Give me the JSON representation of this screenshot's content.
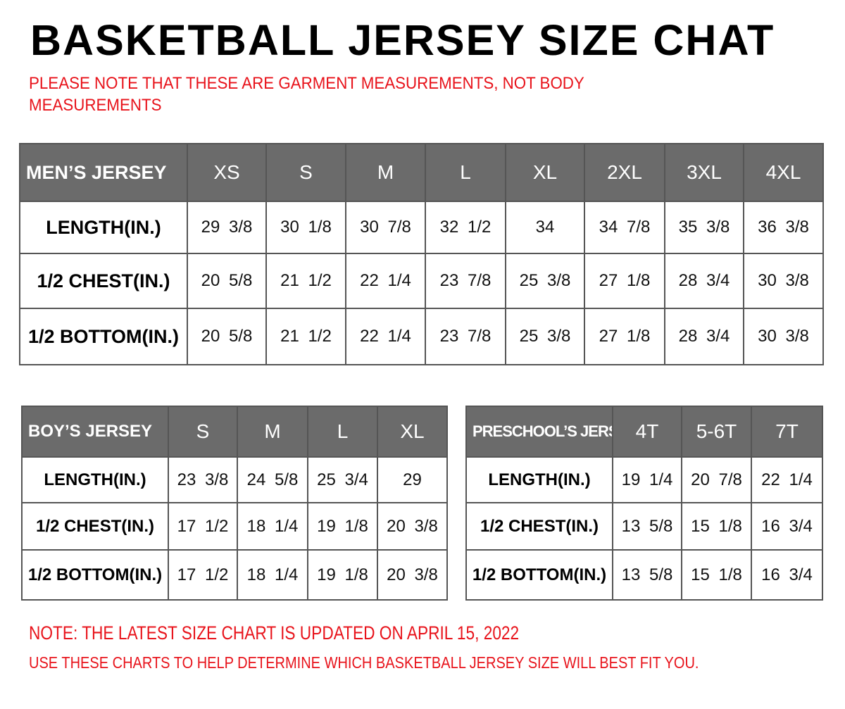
{
  "title": "BASKETBALL JERSEY SIZE CHAT",
  "notes": {
    "top": "PLEASE NOTE THAT THESE ARE GARMENT MEASUREMENTS, NOT BODY MEASUREMENTS",
    "updated": "NOTE: THE LATEST SIZE CHART IS UPDATED ON APRIL 15, 2022",
    "usage": "USE THESE CHARTS TO HELP DETERMINE WHICH  BASKETBALL JERSEY  SIZE WILL BEST FIT YOU."
  },
  "colors": {
    "header_bg": "#6b6b6b",
    "note_red": "#e8131b"
  },
  "tables": {
    "men": {
      "header": "MEN’S JERSEY",
      "sizes": [
        "XS",
        "S",
        "M",
        "L",
        "XL",
        "2XL",
        "3XL",
        "4XL"
      ],
      "rows": [
        {
          "label": "LENGTH(IN.)",
          "values": [
            "29 3/8",
            "30 1/8",
            "30 7/8",
            "32 1/2",
            "34",
            "34 7/8",
            "35 3/8",
            "36 3/8"
          ]
        },
        {
          "label": "1/2 CHEST(IN.)",
          "values": [
            "20 5/8",
            "21 1/2",
            "22 1/4",
            "23 7/8",
            "25 3/8",
            "27 1/8",
            "28 3/4",
            "30 3/8"
          ]
        },
        {
          "label": "1/2 BOTTOM(IN.)",
          "values": [
            "20 5/8",
            "21 1/2",
            "22 1/4",
            "23 7/8",
            "25 3/8",
            "27 1/8",
            "28 3/4",
            "30 3/8"
          ]
        }
      ]
    },
    "boys": {
      "header": "BOY’S JERSEY",
      "sizes": [
        "S",
        "M",
        "L",
        "XL"
      ],
      "rows": [
        {
          "label": "LENGTH(IN.)",
          "values": [
            "23 3/8",
            "24 5/8",
            "25 3/4",
            "29"
          ]
        },
        {
          "label": "1/2 CHEST(IN.)",
          "values": [
            "17 1/2",
            "18 1/4",
            "19 1/8",
            "20 3/8"
          ]
        },
        {
          "label": "1/2 BOTTOM(IN.)",
          "values": [
            "17 1/2",
            "18 1/4",
            "19 1/8",
            "20 3/8"
          ]
        }
      ]
    },
    "pre": {
      "header": "PRESCHOOL’S JERSEY",
      "sizes": [
        "4T",
        "5-6T",
        "7T"
      ],
      "rows": [
        {
          "label": "LENGTH(IN.)",
          "values": [
            "19 1/4",
            "20 7/8",
            "22 1/4"
          ]
        },
        {
          "label": "1/2 CHEST(IN.)",
          "values": [
            "13 5/8",
            "15 1/8",
            "16 3/4"
          ]
        },
        {
          "label": "1/2 BOTTOM(IN.)",
          "values": [
            "13 5/8",
            "15 1/8",
            "16 3/4"
          ]
        }
      ]
    }
  }
}
